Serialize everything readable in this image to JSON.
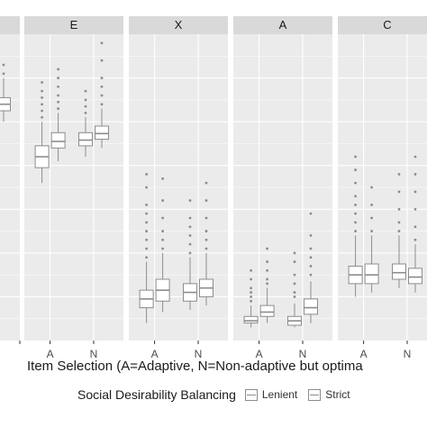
{
  "chart_data": {
    "type": "boxplot",
    "panels": [
      {
        "name": "E",
        "categories": [
          "A",
          "N"
        ],
        "series": [
          {
            "name": "Lenient",
            "boxes": [
              {
                "whisker_low": 0.36,
                "q1": 0.395,
                "median": 0.42,
                "q3": 0.445,
                "whisker_high": 0.5,
                "outliers": [
                  0.51,
                  0.525,
                  0.54,
                  0.555,
                  0.57,
                  0.59
                ]
              },
              {
                "whisker_low": 0.42,
                "q1": 0.445,
                "median": 0.458,
                "q3": 0.475,
                "whisker_high": 0.51,
                "outliers": [
                  0.52,
                  0.535,
                  0.55,
                  0.57
                ]
              }
            ]
          },
          {
            "name": "Strict",
            "boxes": [
              {
                "whisker_low": 0.41,
                "q1": 0.44,
                "median": 0.455,
                "q3": 0.475,
                "whisker_high": 0.52,
                "outliers": [
                  0.53,
                  0.545,
                  0.56,
                  0.58,
                  0.6,
                  0.62
                ]
              },
              {
                "whisker_low": 0.44,
                "q1": 0.46,
                "median": 0.473,
                "q3": 0.49,
                "whisker_high": 0.53,
                "outliers": [
                  0.54,
                  0.56,
                  0.58,
                  0.6,
                  0.64,
                  0.68
                ]
              }
            ]
          }
        ]
      },
      {
        "name": "X",
        "categories": [
          "A",
          "N"
        ],
        "series": [
          {
            "name": "Lenient",
            "boxes": [
              {
                "whisker_low": 0.04,
                "q1": 0.075,
                "median": 0.095,
                "q3": 0.115,
                "whisker_high": 0.18,
                "outliers": [
                  0.19,
                  0.21,
                  0.23,
                  0.25,
                  0.27,
                  0.29,
                  0.31,
                  0.35,
                  0.38
                ]
              },
              {
                "whisker_low": 0.07,
                "q1": 0.09,
                "median": 0.11,
                "q3": 0.13,
                "whisker_high": 0.19,
                "outliers": [
                  0.2,
                  0.22,
                  0.24,
                  0.26,
                  0.28,
                  0.32
                ]
              }
            ]
          },
          {
            "name": "Strict",
            "boxes": [
              {
                "whisker_low": 0.065,
                "q1": 0.09,
                "median": 0.115,
                "q3": 0.14,
                "whisker_high": 0.2,
                "outliers": [
                  0.21,
                  0.23,
                  0.25,
                  0.28,
                  0.32,
                  0.37
                ]
              },
              {
                "whisker_low": 0.08,
                "q1": 0.1,
                "median": 0.12,
                "q3": 0.14,
                "whisker_high": 0.2,
                "outliers": [
                  0.21,
                  0.23,
                  0.25,
                  0.28,
                  0.32,
                  0.36
                ]
              }
            ]
          }
        ]
      },
      {
        "name": "A",
        "categories": [
          "A",
          "N"
        ],
        "series": [
          {
            "name": "Lenient",
            "boxes": [
              {
                "whisker_low": 0.03,
                "q1": 0.04,
                "median": 0.045,
                "q3": 0.055,
                "whisker_high": 0.08,
                "outliers": [
                  0.09,
                  0.1,
                  0.11,
                  0.12,
                  0.14,
                  0.16
                ]
              },
              {
                "whisker_low": 0.03,
                "q1": 0.035,
                "median": 0.045,
                "q3": 0.055,
                "whisker_high": 0.085,
                "outliers": [
                  0.1,
                  0.11,
                  0.13,
                  0.15,
                  0.18,
                  0.2
                ]
              }
            ]
          },
          {
            "name": "Strict",
            "boxes": [
              {
                "whisker_low": 0.04,
                "q1": 0.055,
                "median": 0.065,
                "q3": 0.08,
                "whisker_high": 0.12,
                "outliers": [
                  0.13,
                  0.14,
                  0.16,
                  0.18,
                  0.21
                ]
              },
              {
                "whisker_low": 0.04,
                "q1": 0.06,
                "median": 0.075,
                "q3": 0.095,
                "whisker_high": 0.135,
                "outliers": [
                  0.15,
                  0.17,
                  0.19,
                  0.21,
                  0.24,
                  0.29
                ]
              }
            ]
          }
        ]
      },
      {
        "name": "C",
        "categories": [
          "A",
          "N"
        ],
        "series": [
          {
            "name": "Lenient",
            "boxes": [
              {
                "whisker_low": 0.1,
                "q1": 0.13,
                "median": 0.15,
                "q3": 0.17,
                "whisker_high": 0.24,
                "outliers": [
                  0.25,
                  0.27,
                  0.29,
                  0.31,
                  0.33,
                  0.36,
                  0.39,
                  0.42
                ]
              },
              {
                "whisker_low": 0.12,
                "q1": 0.14,
                "median": 0.155,
                "q3": 0.175,
                "whisker_high": 0.24,
                "outliers": [
                  0.25,
                  0.27,
                  0.3,
                  0.34,
                  0.38
                ]
              }
            ]
          },
          {
            "name": "Strict",
            "boxes": [
              {
                "whisker_low": 0.11,
                "q1": 0.13,
                "median": 0.15,
                "q3": 0.175,
                "whisker_high": 0.24,
                "outliers": [
                  0.25,
                  0.28,
                  0.31,
                  0.35
                ]
              },
              {
                "whisker_low": 0.11,
                "q1": 0.13,
                "median": 0.145,
                "q3": 0.165,
                "whisker_high": 0.22,
                "outliers": [
                  0.23,
                  0.26,
                  0.3,
                  0.34,
                  0.38,
                  0.42
                ]
              }
            ]
          }
        ]
      }
    ],
    "xlabel": "Item Selection (A=Adaptive, N=Non-adaptive but optima",
    "legend": {
      "title": "Social Desirability Balancing",
      "entries": [
        "Lenient",
        "Strict"
      ],
      "position": "bottom"
    },
    "grid": true,
    "ylim": [
      0,
      0.7
    ]
  },
  "partial_panel": {
    "boxes": [
      {
        "whisker_low": 0.5,
        "q1": 0.525,
        "median": 0.54,
        "q3": 0.555,
        "whisker_high": 0.6,
        "outliers": [
          0.61,
          0.63
        ]
      }
    ]
  },
  "colors": {
    "panel": "#ebebeb",
    "strip": "#d9d9d9",
    "grid": "#ffffff",
    "box": "#8c8c8c",
    "outlier": "#8c8c8c"
  }
}
